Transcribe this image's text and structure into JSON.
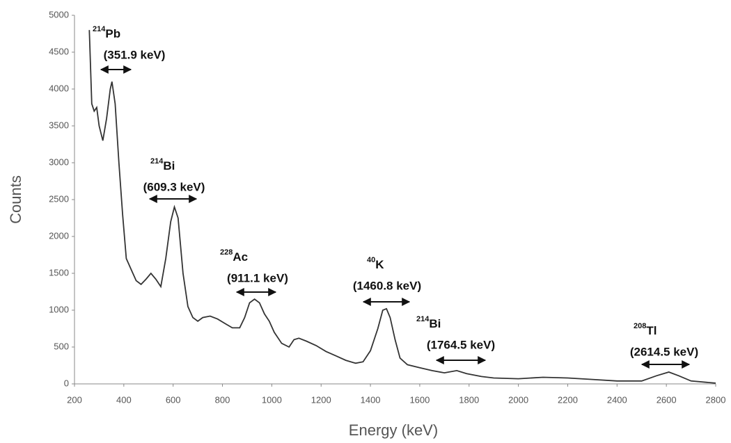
{
  "chart_data": {
    "type": "line",
    "x_label": "Energy (keV)",
    "y_label": "Counts",
    "color": "#333333",
    "xlim": [
      200,
      2800
    ],
    "ylim": [
      0,
      5000
    ],
    "xticks": [
      200,
      400,
      600,
      800,
      1000,
      1200,
      1400,
      1600,
      1800,
      2000,
      2200,
      2400,
      2600,
      2800
    ],
    "yticks": [
      0,
      500,
      1000,
      1500,
      2000,
      2500,
      3000,
      3500,
      4000,
      4500,
      5000
    ],
    "x": [
      260,
      270,
      280,
      290,
      300,
      315,
      330,
      345,
      352,
      365,
      380,
      395,
      410,
      430,
      450,
      470,
      490,
      510,
      530,
      550,
      570,
      590,
      605,
      620,
      640,
      660,
      680,
      700,
      720,
      750,
      780,
      810,
      840,
      870,
      890,
      910,
      930,
      950,
      970,
      990,
      1010,
      1040,
      1070,
      1090,
      1110,
      1140,
      1180,
      1220,
      1260,
      1300,
      1340,
      1370,
      1400,
      1430,
      1450,
      1465,
      1480,
      1500,
      1520,
      1550,
      1600,
      1650,
      1700,
      1750,
      1790,
      1850,
      1900,
      2000,
      2100,
      2200,
      2300,
      2400,
      2500,
      2560,
      2610,
      2650,
      2700,
      2800
    ],
    "values": [
      4800,
      3800,
      3700,
      3750,
      3500,
      3300,
      3600,
      4000,
      4100,
      3800,
      3000,
      2300,
      1700,
      1550,
      1400,
      1350,
      1420,
      1500,
      1420,
      1320,
      1700,
      2200,
      2400,
      2250,
      1500,
      1050,
      900,
      850,
      900,
      920,
      880,
      820,
      760,
      760,
      900,
      1100,
      1150,
      1100,
      950,
      850,
      700,
      550,
      500,
      600,
      620,
      580,
      520,
      440,
      380,
      320,
      280,
      300,
      450,
      750,
      1000,
      1020,
      900,
      600,
      350,
      260,
      220,
      180,
      150,
      180,
      140,
      100,
      80,
      70,
      90,
      80,
      60,
      40,
      40,
      110,
      160,
      110,
      40,
      10
    ],
    "annotations": [
      {
        "mass": "214",
        "element": "Pb",
        "energy": "(351.9 keV)"
      },
      {
        "mass": "214",
        "element": "Bi",
        "energy": "(609.3 keV)"
      },
      {
        "mass": "228",
        "element": "Ac",
        "energy": "(911.1 keV)"
      },
      {
        "mass": "40",
        "element": "K",
        "energy": "(1460.8 keV)"
      },
      {
        "mass": "214",
        "element": "Bi",
        "energy": "(1764.5 keV)"
      },
      {
        "mass": "208",
        "element": "Tl",
        "energy": "(2614.5 keV)"
      }
    ]
  }
}
